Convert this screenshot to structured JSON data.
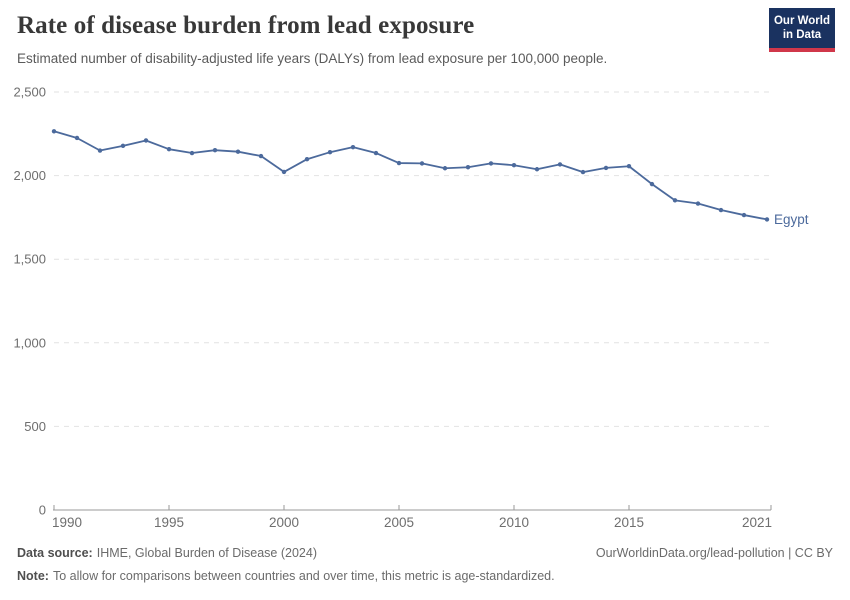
{
  "logo": {
    "line1": "Our World",
    "line2": "in Data",
    "bg_color": "#1a3260",
    "bar_color": "#d0374a"
  },
  "chart_data": {
    "type": "line",
    "title": "Rate of disease burden from lead exposure",
    "subtitle": "Estimated number of disability-adjusted life years (DALYs) from lead exposure per 100,000 people.",
    "x": [
      1990,
      1991,
      1992,
      1993,
      1994,
      1995,
      1996,
      1997,
      1998,
      1999,
      2000,
      2001,
      2002,
      2003,
      2004,
      2005,
      2006,
      2007,
      2008,
      2009,
      2010,
      2011,
      2012,
      2013,
      2014,
      2015,
      2016,
      2017,
      2018,
      2019,
      2020,
      2021
    ],
    "series": [
      {
        "name": "Egypt",
        "values": [
          2265,
          2225,
          2150,
          2178,
          2210,
          2158,
          2135,
          2152,
          2143,
          2117,
          2022,
          2098,
          2140,
          2170,
          2135,
          2075,
          2073,
          2044,
          2050,
          2073,
          2062,
          2038,
          2067,
          2021,
          2046,
          2056,
          1949,
          1852,
          1833,
          1794,
          1764,
          1738
        ]
      }
    ],
    "ylim": [
      0,
      2500
    ],
    "yticks": [
      {
        "value": 0,
        "label": "0"
      },
      {
        "value": 500,
        "label": "500"
      },
      {
        "value": 1000,
        "label": "1,000"
      },
      {
        "value": 1500,
        "label": "1,500"
      },
      {
        "value": 2000,
        "label": "2,000"
      },
      {
        "value": 2500,
        "label": "2,500"
      }
    ],
    "xticks": [
      1990,
      1995,
      2000,
      2005,
      2010,
      2015,
      2021
    ],
    "grid": "horizontal-dashed",
    "legend_position": "end-of-line-label",
    "colors": {
      "line": "#4c6a9c",
      "gridline": "#e2e2e2",
      "axis": "#9a9a9a",
      "tick_label": "#6e6e6e"
    }
  },
  "footer": {
    "source_label": "Data source:",
    "source_value": "IHME, Global Burden of Disease (2024)",
    "attribution": "OurWorldinData.org/lead-pollution | CC BY",
    "note_label": "Note:",
    "note_value": "To allow for comparisons between countries and over time, this metric is age-standardized."
  }
}
